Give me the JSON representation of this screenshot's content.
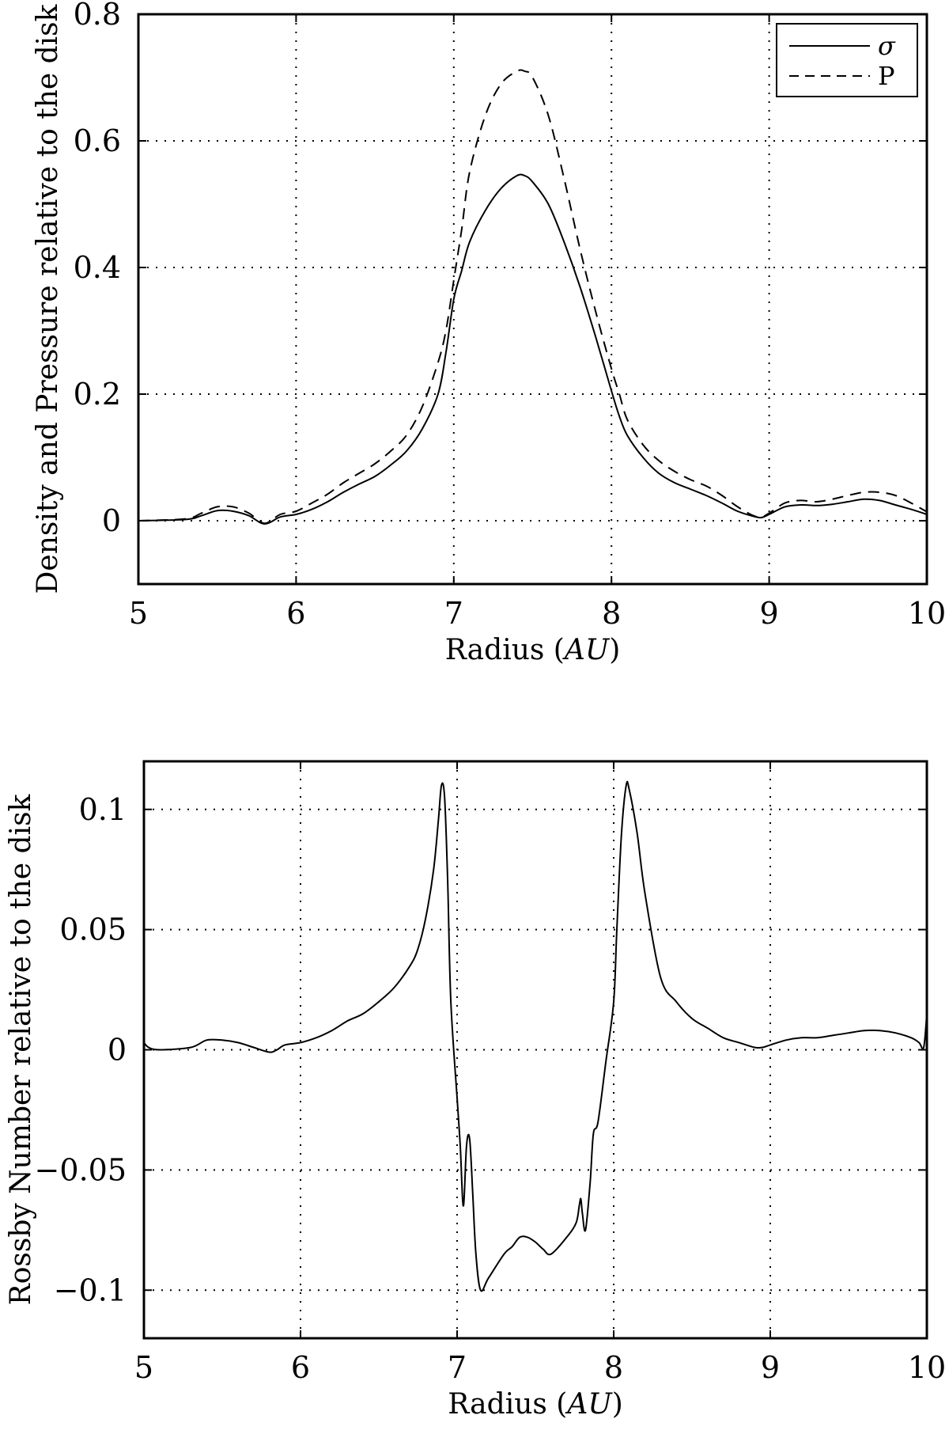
{
  "chart_data": [
    {
      "type": "line",
      "xlabel": "Radius (AU)",
      "xlabel_parts": {
        "text": "Radius (",
        "unit": "AU",
        "close": ")"
      },
      "ylabel": "Density and Pressure relative to the disk",
      "xlim": [
        5,
        10
      ],
      "ylim": [
        -0.1,
        0.8
      ],
      "xticks": [
        5,
        6,
        7,
        8,
        9,
        10
      ],
      "xtick_labels": [
        "5",
        "6",
        "7",
        "8",
        "9",
        "10"
      ],
      "yticks": [
        0,
        0.2,
        0.4,
        0.6,
        0.8
      ],
      "ytick_labels": [
        "0",
        "0.2",
        "0.4",
        "0.6",
        "0.8"
      ],
      "grid": true,
      "legend": {
        "placement": "top-right"
      },
      "series": [
        {
          "name": "σ",
          "style": "solid",
          "x": [
            5.0,
            5.3,
            5.4,
            5.5,
            5.6,
            5.7,
            5.8,
            5.9,
            6.0,
            6.1,
            6.2,
            6.3,
            6.4,
            6.5,
            6.6,
            6.7,
            6.8,
            6.9,
            6.95,
            7.0,
            7.05,
            7.1,
            7.2,
            7.3,
            7.4,
            7.45,
            7.5,
            7.6,
            7.7,
            7.8,
            7.9,
            8.0,
            8.05,
            8.1,
            8.2,
            8.3,
            8.4,
            8.5,
            8.6,
            8.7,
            8.8,
            8.9,
            8.95,
            9.0,
            9.1,
            9.2,
            9.3,
            9.4,
            9.5,
            9.6,
            9.7,
            9.8,
            9.9,
            10.0
          ],
          "y": [
            0.0,
            0.002,
            0.008,
            0.016,
            0.015,
            0.008,
            -0.005,
            0.006,
            0.01,
            0.018,
            0.03,
            0.045,
            0.058,
            0.07,
            0.088,
            0.11,
            0.145,
            0.2,
            0.265,
            0.35,
            0.395,
            0.44,
            0.49,
            0.525,
            0.545,
            0.545,
            0.535,
            0.5,
            0.44,
            0.37,
            0.29,
            0.205,
            0.165,
            0.135,
            0.1,
            0.075,
            0.06,
            0.05,
            0.04,
            0.028,
            0.015,
            0.007,
            0.005,
            0.01,
            0.022,
            0.025,
            0.024,
            0.026,
            0.03,
            0.034,
            0.032,
            0.025,
            0.018,
            0.01
          ]
        },
        {
          "name": "P",
          "style": "dashed",
          "x": [
            5.0,
            5.3,
            5.4,
            5.5,
            5.6,
            5.7,
            5.8,
            5.9,
            6.0,
            6.1,
            6.2,
            6.3,
            6.4,
            6.5,
            6.6,
            6.7,
            6.8,
            6.9,
            6.95,
            7.0,
            7.05,
            7.1,
            7.2,
            7.3,
            7.4,
            7.45,
            7.5,
            7.6,
            7.7,
            7.8,
            7.9,
            8.0,
            8.05,
            8.1,
            8.2,
            8.3,
            8.4,
            8.5,
            8.6,
            8.7,
            8.8,
            8.9,
            8.95,
            9.0,
            9.1,
            9.2,
            9.3,
            9.4,
            9.5,
            9.6,
            9.7,
            9.8,
            9.9,
            10.0
          ],
          "y": [
            0.0,
            0.003,
            0.012,
            0.022,
            0.022,
            0.012,
            -0.004,
            0.01,
            0.015,
            0.028,
            0.042,
            0.06,
            0.075,
            0.09,
            0.11,
            0.135,
            0.18,
            0.25,
            0.3,
            0.38,
            0.46,
            0.55,
            0.64,
            0.69,
            0.71,
            0.71,
            0.7,
            0.64,
            0.54,
            0.43,
            0.33,
            0.24,
            0.2,
            0.16,
            0.12,
            0.095,
            0.078,
            0.065,
            0.055,
            0.04,
            0.022,
            0.008,
            0.006,
            0.012,
            0.028,
            0.032,
            0.03,
            0.034,
            0.04,
            0.045,
            0.045,
            0.04,
            0.028,
            0.014
          ]
        }
      ]
    },
    {
      "type": "line",
      "xlabel": "Radius (AU)",
      "xlabel_parts": {
        "text": "Radius (",
        "unit": "AU",
        "close": ")"
      },
      "ylabel": "Rossby Number relative to the disk",
      "xlim": [
        5,
        10
      ],
      "ylim": [
        -0.12,
        0.12
      ],
      "xticks": [
        5,
        6,
        7,
        8,
        9,
        10
      ],
      "xtick_labels": [
        "5",
        "6",
        "7",
        "8",
        "9",
        "10"
      ],
      "yticks": [
        -0.1,
        -0.05,
        0,
        0.05,
        0.1
      ],
      "ytick_labels": [
        "−0.1",
        "−0.05",
        "0",
        "0.05",
        "0.1"
      ],
      "grid": true,
      "series": [
        {
          "style": "solid",
          "x": [
            5.0,
            5.03,
            5.1,
            5.3,
            5.4,
            5.5,
            5.6,
            5.7,
            5.8,
            5.85,
            5.9,
            6.0,
            6.1,
            6.2,
            6.3,
            6.4,
            6.5,
            6.6,
            6.7,
            6.75,
            6.8,
            6.85,
            6.88,
            6.9,
            6.92,
            6.94,
            6.96,
            7.0,
            7.02,
            7.04,
            7.06,
            7.08,
            7.1,
            7.12,
            7.15,
            7.2,
            7.3,
            7.35,
            7.4,
            7.45,
            7.5,
            7.55,
            7.6,
            7.7,
            7.76,
            7.78,
            7.79,
            7.8,
            7.82,
            7.85,
            7.87,
            7.9,
            7.95,
            8.0,
            8.02,
            8.05,
            8.08,
            8.1,
            8.15,
            8.2,
            8.3,
            8.4,
            8.5,
            8.6,
            8.7,
            8.8,
            8.9,
            8.95,
            9.0,
            9.1,
            9.2,
            9.3,
            9.4,
            9.5,
            9.6,
            9.7,
            9.8,
            9.9,
            9.95,
            9.98,
            10.0
          ],
          "y": [
            0.003,
            0.001,
            0.0,
            0.001,
            0.004,
            0.004,
            0.003,
            0.001,
            -0.001,
            0.0,
            0.002,
            0.003,
            0.005,
            0.008,
            0.012,
            0.015,
            0.02,
            0.026,
            0.035,
            0.042,
            0.055,
            0.075,
            0.095,
            0.11,
            0.105,
            0.07,
            0.02,
            -0.02,
            -0.04,
            -0.065,
            -0.04,
            -0.037,
            -0.06,
            -0.085,
            -0.1,
            -0.095,
            -0.085,
            -0.082,
            -0.078,
            -0.078,
            -0.08,
            -0.083,
            -0.085,
            -0.078,
            -0.072,
            -0.065,
            -0.062,
            -0.068,
            -0.075,
            -0.055,
            -0.035,
            -0.03,
            -0.005,
            0.02,
            0.05,
            0.09,
            0.11,
            0.108,
            0.09,
            0.065,
            0.03,
            0.02,
            0.013,
            0.009,
            0.005,
            0.003,
            0.001,
            0.001,
            0.002,
            0.004,
            0.005,
            0.005,
            0.006,
            0.007,
            0.008,
            0.008,
            0.007,
            0.005,
            0.003,
            0.001,
            0.015
          ]
        }
      ]
    }
  ]
}
